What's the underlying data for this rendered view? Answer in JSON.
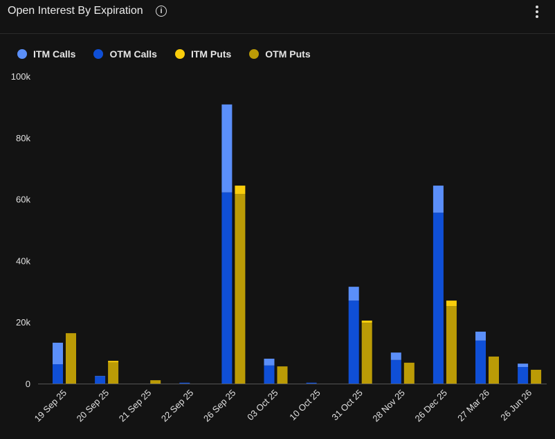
{
  "header": {
    "title": "Open Interest By Expiration",
    "info_icon": "info-icon",
    "menu_icon": "kebab-menu-icon"
  },
  "chart_data": {
    "type": "bar",
    "stacked": "calls and puts stacked separately (grouped stacked bars)",
    "categories": [
      "19 Sep 25",
      "20 Sep 25",
      "21 Sep 25",
      "22 Sep 25",
      "26 Sep 25",
      "03 Oct 25",
      "10 Oct 25",
      "31 Oct 25",
      "28 Nov 25",
      "26 Dec 25",
      "27 Mar 26",
      "26 Jun 26"
    ],
    "series": [
      {
        "name": "ITM Calls",
        "stack": "calls",
        "color": "#5b8ff9",
        "values": [
          7.0,
          0.1,
          0,
          0,
          28.6,
          2.2,
          0,
          4.5,
          2.4,
          8.8,
          2.9,
          1.1
        ]
      },
      {
        "name": "OTM Calls",
        "stack": "calls",
        "color": "#0f4fd6",
        "values": [
          6.3,
          2.4,
          0,
          0.3,
          62.2,
          5.9,
          0.3,
          27.0,
          7.7,
          55.6,
          14.0,
          5.4
        ]
      },
      {
        "name": "ITM Puts",
        "stack": "puts",
        "color": "#f9cd0b",
        "values": [
          0,
          0.5,
          0,
          0,
          2.7,
          0,
          0,
          0.7,
          0,
          1.8,
          0,
          0
        ]
      },
      {
        "name": "OTM Puts",
        "stack": "puts",
        "color": "#bb9b06",
        "values": [
          16.4,
          6.9,
          1.1,
          0,
          61.7,
          5.6,
          0,
          19.8,
          6.8,
          25.2,
          8.8,
          4.5
        ]
      }
    ],
    "unit": "k",
    "yticks": [
      "0",
      "20k",
      "40k",
      "60k",
      "80k",
      "100k"
    ],
    "ylim": [
      0,
      100
    ],
    "grid": false,
    "legend": "top-left"
  }
}
